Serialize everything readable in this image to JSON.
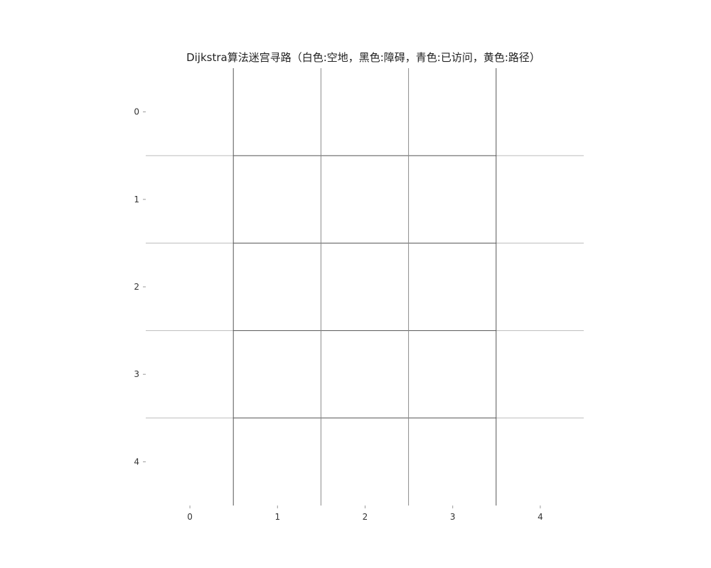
{
  "chart_data": {
    "type": "heatmap",
    "title": "Dijkstra算法迷宫寻路（白色:空地，黑色:障碍，青色:已访问，黄色:路径）",
    "rows": 5,
    "cols": 5,
    "xticks": [
      "0",
      "1",
      "2",
      "3",
      "4"
    ],
    "yticks": [
      "0",
      "1",
      "2",
      "3",
      "4"
    ],
    "values": [
      [
        0,
        0,
        0,
        0,
        0
      ],
      [
        0,
        0,
        0,
        0,
        0
      ],
      [
        0,
        0,
        0,
        0,
        0
      ],
      [
        0,
        0,
        0,
        0,
        0
      ],
      [
        0,
        0,
        0,
        0,
        0
      ]
    ],
    "legend": {
      "0": "空地",
      "1": "障碍",
      "2": "已访问",
      "3": "路径"
    },
    "colors": {
      "empty": "#ffffff",
      "wall": "#000000",
      "visited": "#00ffff",
      "path": "#ffff00",
      "grid_light": "#bdbdbd",
      "grid_dark": "#555555"
    },
    "grid": true
  }
}
